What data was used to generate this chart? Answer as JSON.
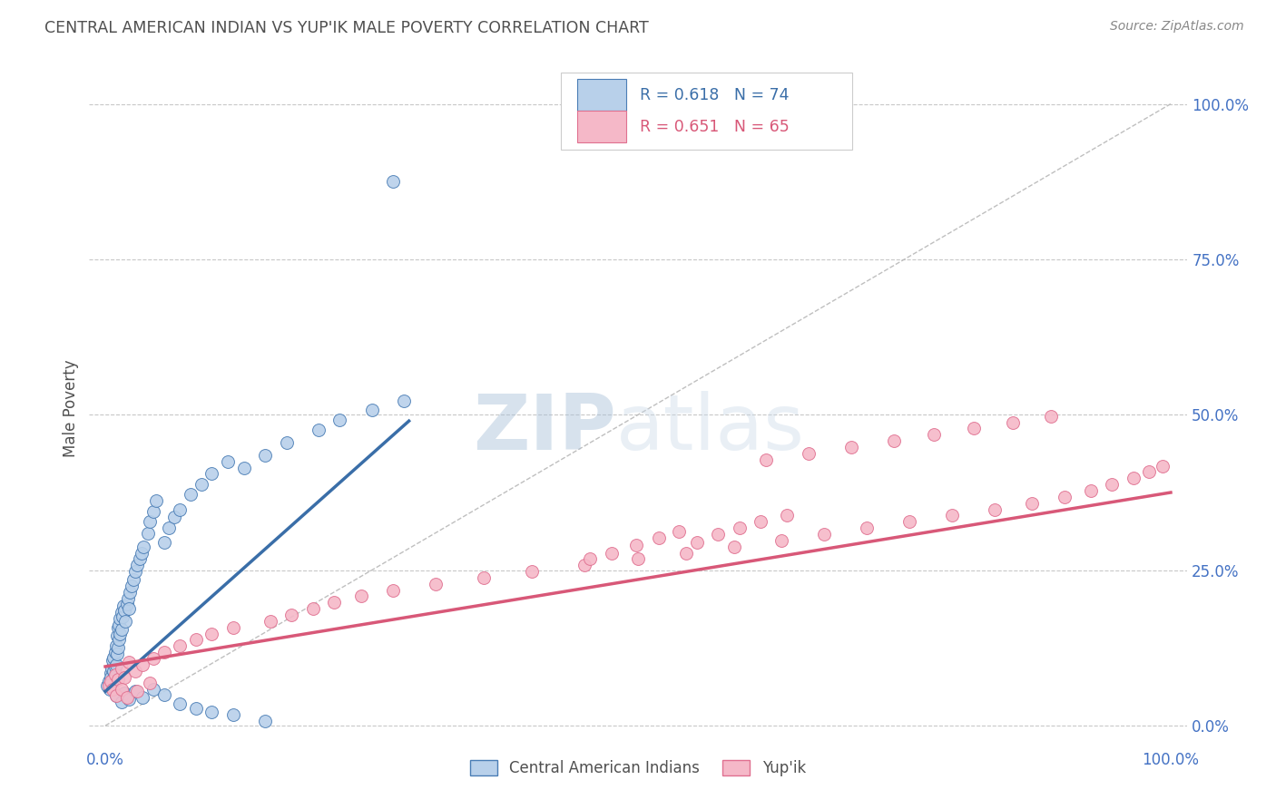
{
  "title": "CENTRAL AMERICAN INDIAN VS YUP'IK MALE POVERTY CORRELATION CHART",
  "source": "Source: ZipAtlas.com",
  "ylabel": "Male Poverty",
  "yticks_labels": [
    "0.0%",
    "25.0%",
    "50.0%",
    "75.0%",
    "100.0%"
  ],
  "ytick_vals": [
    0.0,
    0.25,
    0.5,
    0.75,
    1.0
  ],
  "xtick_labels": [
    "0.0%",
    "100.0%"
  ],
  "xtick_vals": [
    0.0,
    1.0
  ],
  "legend_1_label": "Central American Indians",
  "legend_2_label": "Yup'ik",
  "r1": 0.618,
  "n1": 74,
  "r2": 0.651,
  "n2": 65,
  "color_blue_fill": "#b8d0ea",
  "color_blue_edge": "#4a7db5",
  "color_blue_line": "#3a6ea8",
  "color_pink_fill": "#f5b8c8",
  "color_pink_edge": "#e07090",
  "color_pink_line": "#d85878",
  "color_diag": "#b8b8b8",
  "watermark_color": "#c5d8ea",
  "background_color": "#ffffff",
  "grid_color": "#c8c8c8",
  "title_color": "#505050",
  "source_color": "#888888",
  "tick_color": "#4472c4",
  "ylabel_color": "#505050",
  "blue_x": [
    0.002,
    0.003,
    0.004,
    0.005,
    0.005,
    0.006,
    0.006,
    0.007,
    0.007,
    0.008,
    0.008,
    0.009,
    0.009,
    0.01,
    0.01,
    0.01,
    0.011,
    0.011,
    0.012,
    0.012,
    0.013,
    0.013,
    0.014,
    0.014,
    0.015,
    0.015,
    0.016,
    0.017,
    0.018,
    0.019,
    0.02,
    0.021,
    0.022,
    0.023,
    0.025,
    0.026,
    0.028,
    0.03,
    0.032,
    0.034,
    0.036,
    0.04,
    0.042,
    0.045,
    0.048,
    0.055,
    0.06,
    0.065,
    0.07,
    0.08,
    0.09,
    0.1,
    0.115,
    0.13,
    0.15,
    0.17,
    0.2,
    0.22,
    0.25,
    0.28,
    0.01,
    0.015,
    0.018,
    0.022,
    0.028,
    0.035,
    0.045,
    0.055,
    0.07,
    0.085,
    0.1,
    0.12,
    0.15,
    0.27
  ],
  "blue_y": [
    0.065,
    0.072,
    0.058,
    0.085,
    0.078,
    0.092,
    0.068,
    0.105,
    0.075,
    0.11,
    0.088,
    0.095,
    0.118,
    0.082,
    0.098,
    0.128,
    0.115,
    0.145,
    0.125,
    0.158,
    0.138,
    0.162,
    0.148,
    0.172,
    0.155,
    0.182,
    0.175,
    0.192,
    0.185,
    0.168,
    0.195,
    0.205,
    0.188,
    0.215,
    0.225,
    0.235,
    0.248,
    0.258,
    0.268,
    0.278,
    0.288,
    0.31,
    0.328,
    0.345,
    0.362,
    0.295,
    0.318,
    0.335,
    0.348,
    0.372,
    0.388,
    0.405,
    0.425,
    0.415,
    0.435,
    0.455,
    0.475,
    0.492,
    0.508,
    0.522,
    0.048,
    0.038,
    0.052,
    0.042,
    0.055,
    0.045,
    0.058,
    0.05,
    0.035,
    0.028,
    0.022,
    0.018,
    0.008,
    0.875
  ],
  "pink_x": [
    0.003,
    0.005,
    0.007,
    0.009,
    0.012,
    0.015,
    0.018,
    0.022,
    0.028,
    0.035,
    0.045,
    0.055,
    0.07,
    0.085,
    0.1,
    0.12,
    0.155,
    0.175,
    0.195,
    0.215,
    0.24,
    0.27,
    0.31,
    0.355,
    0.4,
    0.45,
    0.5,
    0.545,
    0.59,
    0.635,
    0.675,
    0.715,
    0.755,
    0.795,
    0.835,
    0.87,
    0.9,
    0.925,
    0.945,
    0.965,
    0.98,
    0.992,
    0.62,
    0.66,
    0.7,
    0.74,
    0.778,
    0.815,
    0.852,
    0.888,
    0.555,
    0.575,
    0.595,
    0.615,
    0.64,
    0.455,
    0.475,
    0.498,
    0.52,
    0.538,
    0.01,
    0.015,
    0.02,
    0.03,
    0.042
  ],
  "pink_y": [
    0.065,
    0.072,
    0.058,
    0.082,
    0.075,
    0.092,
    0.078,
    0.102,
    0.088,
    0.098,
    0.108,
    0.118,
    0.128,
    0.138,
    0.148,
    0.158,
    0.168,
    0.178,
    0.188,
    0.198,
    0.208,
    0.218,
    0.228,
    0.238,
    0.248,
    0.258,
    0.268,
    0.278,
    0.288,
    0.298,
    0.308,
    0.318,
    0.328,
    0.338,
    0.348,
    0.358,
    0.368,
    0.378,
    0.388,
    0.398,
    0.408,
    0.418,
    0.428,
    0.438,
    0.448,
    0.458,
    0.468,
    0.478,
    0.488,
    0.498,
    0.295,
    0.308,
    0.318,
    0.328,
    0.338,
    0.268,
    0.278,
    0.29,
    0.302,
    0.312,
    0.048,
    0.058,
    0.045,
    0.055,
    0.068
  ],
  "blue_line_x0": 0.0,
  "blue_line_x1": 0.285,
  "blue_line_y0": 0.055,
  "blue_line_y1": 0.49,
  "pink_line_x0": 0.0,
  "pink_line_x1": 1.0,
  "pink_line_y0": 0.095,
  "pink_line_y1": 0.375
}
